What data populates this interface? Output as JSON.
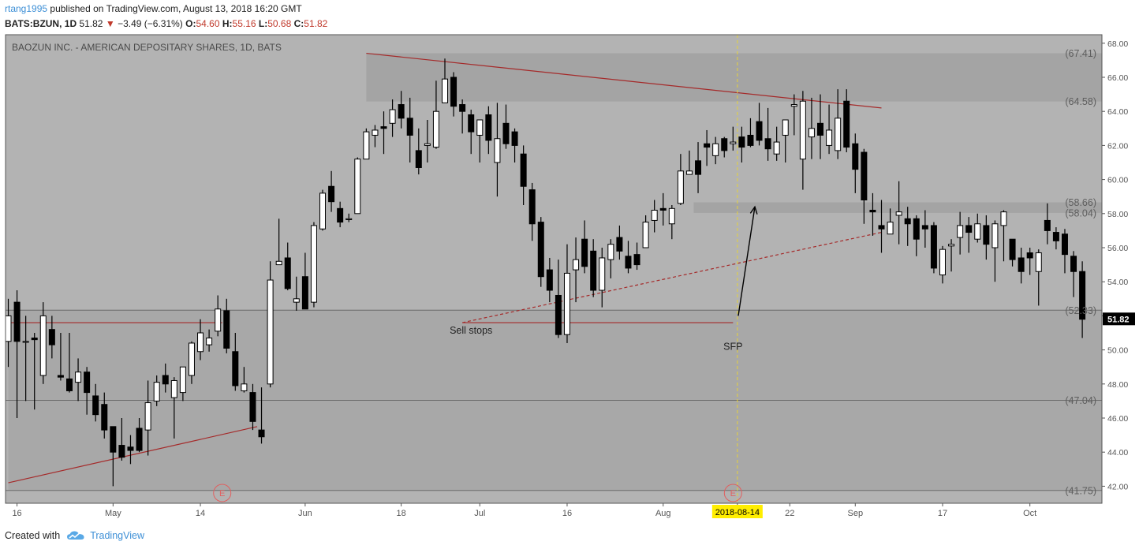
{
  "header": {
    "author": "rtang1995",
    "published_text": "published on TradingView.com, August 13, 2018 16:20 GMT",
    "symbol": "BATS:BZUN, 1D",
    "last": "51.82",
    "down_arrow": "▼",
    "change": "−3.49 (−6.31%)",
    "o_label": "O:",
    "o_value": "54.60",
    "h_label": "H:",
    "h_value": "55.16",
    "l_label": "L:",
    "l_value": "50.68",
    "c_label": "C:",
    "c_value": "51.82"
  },
  "footer": {
    "created_with": "Created with",
    "brand": "TradingView",
    "brand_icon": "tradingview-cloud-icon"
  },
  "chart_data": {
    "type": "candlestick",
    "title": "BAOZUN INC. - AMERICAN DEPOSITARY SHARES, 1D, BATS",
    "ylim": [
      41,
      68.5
    ],
    "y_ticks": [
      42,
      44,
      46,
      48,
      50,
      52,
      54,
      56,
      58,
      60,
      62,
      64,
      66,
      68
    ],
    "x_ticks": [
      {
        "label": "16",
        "bar": 1
      },
      {
        "label": "May",
        "bar": 12
      },
      {
        "label": "14",
        "bar": 22
      },
      {
        "label": "Jun",
        "bar": 34
      },
      {
        "label": "18",
        "bar": 45
      },
      {
        "label": "Jul",
        "bar": 54
      },
      {
        "label": "16",
        "bar": 64
      },
      {
        "label": "Aug",
        "bar": 75
      },
      {
        "label": "14",
        "bar": 83.5
      },
      {
        "label": "22",
        "bar": 89.5
      },
      {
        "label": "Sep",
        "bar": 97
      },
      {
        "label": "17",
        "bar": 107
      },
      {
        "label": "Oct",
        "bar": 117
      }
    ],
    "cursor_date_label": "2018-08-14",
    "cursor_bar": 83.5,
    "last_price_label": "51.82",
    "last_price": 51.82,
    "level_labels": [
      {
        "text": "(67.41)",
        "value": 67.41
      },
      {
        "text": "(64.58)",
        "value": 64.58
      },
      {
        "text": "(58.66)",
        "value": 58.66
      },
      {
        "text": "(58.04)",
        "value": 58.04
      },
      {
        "text": "(52.33)",
        "value": 52.33
      },
      {
        "text": "(47.04)",
        "value": 47.04
      },
      {
        "text": "(41.75)",
        "value": 41.75
      }
    ],
    "zones": [
      {
        "from": 64.58,
        "to": 67.41,
        "bar_start": 41,
        "color": "#a4a4a4"
      },
      {
        "from": 58.04,
        "to": 58.66,
        "bar_start": 78.5,
        "color": "#a4a4a4"
      },
      {
        "from": 47.04,
        "to": 52.33,
        "bar_start": 0,
        "color": "#a8a8a8"
      },
      {
        "from": 41.75,
        "to": 47.04,
        "bar_start": 0,
        "color": "#a8a8a8"
      }
    ],
    "annotations": [
      {
        "text": "Sell stops",
        "bar": 53,
        "value": 50.95
      },
      {
        "text": "SFP",
        "bar": 83,
        "value": 50.0
      }
    ],
    "earnings_markers": [
      {
        "label": "E",
        "bar": 24.5
      },
      {
        "label": "E",
        "bar": 83
      }
    ],
    "trendlines": [
      {
        "from": [
          41,
          67.41
        ],
        "to": [
          100,
          64.2
        ],
        "color": "#a52a2a",
        "dashed": false
      },
      {
        "from": [
          0,
          42.2
        ],
        "to": [
          28.5,
          45.5
        ],
        "color": "#a52a2a",
        "dashed": false
      },
      {
        "from": [
          0,
          51.6
        ],
        "to": [
          24.5,
          51.6
        ],
        "color": "#a52a2a",
        "dashed": false
      },
      {
        "from": [
          52,
          51.6
        ],
        "to": [
          83,
          51.6
        ],
        "color": "#a52a2a",
        "dashed": false
      },
      {
        "from": [
          52,
          51.6
        ],
        "to": [
          100,
          56.9
        ],
        "color": "#a52a2a",
        "dashed": true
      }
    ],
    "arrow": {
      "from": [
        83.6,
        52.0
      ],
      "to": [
        85.5,
        58.4
      ]
    },
    "candles": [
      [
        50.5,
        52,
        53,
        49
      ],
      [
        52.8,
        50.5,
        53.5,
        46
      ],
      [
        50.5,
        50.5,
        52,
        47
      ],
      [
        50.7,
        50.6,
        51,
        46.5
      ],
      [
        48.5,
        52,
        52.8,
        48
      ],
      [
        51.2,
        50.3,
        52,
        49.5
      ],
      [
        48.5,
        48.4,
        51,
        48.2
      ],
      [
        48.3,
        47.6,
        51,
        47.5
      ],
      [
        48.1,
        48.7,
        49.5,
        47
      ],
      [
        48.7,
        47.5,
        49,
        46.2
      ],
      [
        47.3,
        46.2,
        48,
        45.8
      ],
      [
        46.8,
        45.3,
        47.5,
        44.8
      ],
      [
        45.5,
        44,
        45.5,
        42
      ],
      [
        44.4,
        43.7,
        46,
        43.5
      ],
      [
        44.3,
        44.1,
        45,
        43.3
      ],
      [
        45.4,
        44.1,
        46,
        44
      ],
      [
        45.3,
        46.9,
        48.2,
        43.8
      ],
      [
        47,
        48.1,
        48.5,
        46.7
      ],
      [
        48.5,
        48,
        49.2,
        47.5
      ],
      [
        47.2,
        48.2,
        48.4,
        44.8
      ],
      [
        47.5,
        49,
        49,
        47
      ],
      [
        48.5,
        50.4,
        50.5,
        48
      ],
      [
        49.9,
        51,
        51.8,
        49.4
      ],
      [
        50.3,
        50.7,
        51.2,
        49.9
      ],
      [
        51.1,
        52.4,
        53.2,
        50.8
      ],
      [
        52.3,
        50.1,
        53,
        49.8
      ],
      [
        49.9,
        47.9,
        51,
        47.6
      ],
      [
        47.6,
        48,
        49,
        47.5
      ],
      [
        47.5,
        45.8,
        48,
        45.3
      ],
      [
        45.3,
        44.9,
        47.8,
        44.5
      ],
      [
        48,
        54.1,
        55.2,
        47.8
      ],
      [
        55,
        55.2,
        57.7,
        55.1
      ],
      [
        55.4,
        53.6,
        56.3,
        53.5
      ],
      [
        52.8,
        53,
        54.3,
        52.3
      ],
      [
        54.3,
        52.4,
        55.7,
        52.4
      ],
      [
        52.8,
        57.3,
        57.5,
        52.5
      ],
      [
        57.1,
        59.2,
        59.4,
        57
      ],
      [
        59.6,
        58.7,
        60.5,
        58.1
      ],
      [
        58.3,
        57.5,
        58.7,
        57.2
      ],
      [
        57.7,
        57.7,
        58,
        57.5
      ],
      [
        58,
        61.2,
        61.3,
        58
      ],
      [
        61.2,
        62.8,
        63,
        61.8
      ],
      [
        62.6,
        62.9,
        63.2,
        61.9
      ],
      [
        63.1,
        63,
        64,
        61.5
      ],
      [
        63.3,
        64.1,
        64.7,
        62.5
      ],
      [
        64.4,
        63.6,
        65.2,
        63
      ],
      [
        63.6,
        62.6,
        64.8,
        61
      ],
      [
        61.7,
        60.7,
        63,
        60.3
      ],
      [
        62,
        62.1,
        63.5,
        61
      ],
      [
        61.9,
        64,
        65.8,
        61.8
      ],
      [
        64.5,
        65.9,
        67.1,
        65
      ],
      [
        66,
        64.3,
        66.3,
        63.7
      ],
      [
        64.4,
        64,
        64.7,
        62.7
      ],
      [
        63.8,
        62.8,
        64.1,
        61.5
      ],
      [
        62.6,
        63.5,
        63.5,
        61
      ],
      [
        63.8,
        62.3,
        64.3,
        61.5
      ],
      [
        61,
        62.4,
        64.5,
        59
      ],
      [
        63.3,
        62.1,
        64.4,
        61.8
      ],
      [
        62.8,
        62,
        63,
        61
      ],
      [
        61.5,
        59.6,
        62,
        58.5
      ],
      [
        59.4,
        57.4,
        59.8,
        56.4
      ],
      [
        57.5,
        54.3,
        57.8,
        53.7
      ],
      [
        54.7,
        53.5,
        55.4,
        52.8
      ],
      [
        53.2,
        50.9,
        55.3,
        50.7
      ],
      [
        50.9,
        54.5,
        56.2,
        50.4
      ],
      [
        54.7,
        55.3,
        56.6,
        52.8
      ],
      [
        56.5,
        54.9,
        57.6,
        54.5
      ],
      [
        55.8,
        53.5,
        56.5,
        53.1
      ],
      [
        53.5,
        55.4,
        56,
        52.5
      ],
      [
        55.3,
        56.2,
        56.5,
        54.2
      ],
      [
        56.6,
        55.8,
        57.3,
        55.3
      ],
      [
        55.5,
        54.8,
        56.4,
        54.5
      ],
      [
        55.6,
        55,
        56.3,
        54.7
      ],
      [
        56,
        57.5,
        57.9,
        56
      ],
      [
        57.6,
        58.2,
        58.8,
        56.9
      ],
      [
        58.3,
        58.2,
        59.2,
        57.3
      ],
      [
        57.4,
        58.3,
        58.5,
        56.5
      ],
      [
        58.6,
        60.5,
        61.5,
        58.5
      ],
      [
        60.3,
        60.5,
        61.7,
        60.3
      ],
      [
        61.1,
        60.3,
        62.2,
        59.2
      ],
      [
        62.1,
        61.9,
        62.9,
        60.8
      ],
      [
        61.4,
        62.1,
        62.5,
        60.9
      ],
      [
        62.4,
        61.7,
        62.5,
        61.3
      ],
      [
        62.1,
        62.2,
        63.1,
        61.7
      ],
      [
        62.5,
        61.9,
        63.1,
        61
      ],
      [
        62.6,
        62,
        63.6,
        61.9
      ],
      [
        63.4,
        62.3,
        64.5,
        62
      ],
      [
        62.4,
        61.8,
        64.2,
        61.1
      ],
      [
        61.5,
        62.2,
        63.1,
        61.1
      ],
      [
        62.6,
        63.5,
        63.5,
        61
      ],
      [
        64.3,
        64.4,
        65,
        62.6
      ],
      [
        61.2,
        64.6,
        65.2,
        59.4
      ],
      [
        62.5,
        63,
        64.8,
        61.2
      ],
      [
        63.3,
        62.6,
        65,
        61.2
      ],
      [
        62,
        62.9,
        64.4,
        61.5
      ],
      [
        61.7,
        63.6,
        65.3,
        61.2
      ],
      [
        64.6,
        61.9,
        65.3,
        61.6
      ],
      [
        62.1,
        60.6,
        62.7,
        59.2
      ],
      [
        61.6,
        58.8,
        61.8,
        57.4
      ],
      [
        58.2,
        58.1,
        59.2,
        56.7
      ],
      [
        57.3,
        57.1,
        58.8,
        55.7
      ],
      [
        56.8,
        57.5,
        58.3,
        57.2
      ],
      [
        57.9,
        58.1,
        59.9,
        56.2
      ],
      [
        57.7,
        57.4,
        58.4,
        56.1
      ],
      [
        57.7,
        56.5,
        57.9,
        55.5
      ],
      [
        57.3,
        57.1,
        58.2,
        56
      ],
      [
        57.3,
        54.8,
        57.5,
        54.5
      ],
      [
        54.4,
        55.9,
        56.1,
        53.9
      ],
      [
        56.1,
        56.2,
        56.5,
        54.6
      ],
      [
        56.6,
        57.3,
        58.1,
        55.6
      ],
      [
        57.3,
        56.9,
        57.8,
        55.7
      ],
      [
        56.5,
        57.4,
        58,
        56.3
      ],
      [
        57.3,
        56.2,
        57.9,
        55.3
      ],
      [
        56,
        57.4,
        57.6,
        54
      ],
      [
        57.3,
        58.1,
        58.2,
        55.2
      ],
      [
        56.5,
        55.3,
        56.5,
        54.9
      ],
      [
        55.4,
        54.6,
        56,
        53.9
      ],
      [
        55.7,
        55.4,
        56,
        54.4
      ],
      [
        54.6,
        55.7,
        55.9,
        52.6
      ],
      [
        57.6,
        57,
        58.6,
        56.2
      ],
      [
        56.9,
        56.4,
        57.2,
        55.9
      ],
      [
        56.8,
        55.6,
        57.1,
        54.5
      ],
      [
        55.5,
        54.6,
        55.8,
        53.1
      ],
      [
        54.6,
        51.8,
        55.2,
        50.7
      ]
    ]
  }
}
